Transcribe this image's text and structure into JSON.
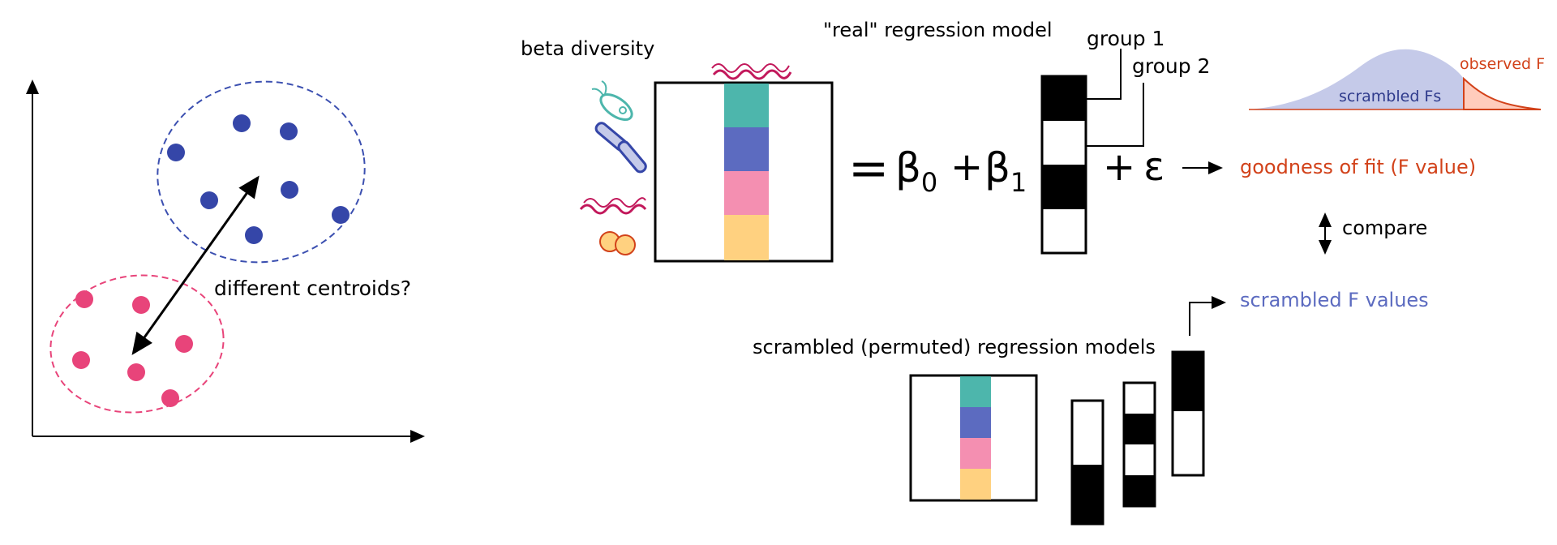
{
  "labels": {
    "different_centroids": "different centroids?",
    "beta_diversity": "beta diversity",
    "real_model": "\"real\" regression model",
    "group1": "group 1",
    "group2": "group 2",
    "equation": {
      "equals": "=",
      "beta": "β",
      "sub0": "0",
      "sub1": "1",
      "plus": "+",
      "epsilon": "ε"
    },
    "goodness_of_fit": "goodness of fit (F value)",
    "compare": "compare",
    "scrambled_f_values": "scrambled F values",
    "scrambled_models": "scrambled (permuted) regression models",
    "scrambled_fs": "scrambled Fs",
    "observed_f": "observed F"
  },
  "colors": {
    "blue_points": "#3546a8",
    "pink_points": "#e8447a",
    "blue_ellipse": "#3b4fb0",
    "pink_ellipse": "#e8447a",
    "teal": "#4db6ac",
    "indigo": "#5c6bc0",
    "pink": "#f48fb1",
    "peach": "#ffd180",
    "orange_text": "#d2421a",
    "blue_text": "#5c6bc0",
    "dist_fill": "#c5cae9",
    "observed_fill": "#ffccbc"
  },
  "icons": [
    "curly-bacterium-icon",
    "flagellated-bacterium-icon",
    "rod-bacteria-icon",
    "coccus-bacteria-icon"
  ]
}
